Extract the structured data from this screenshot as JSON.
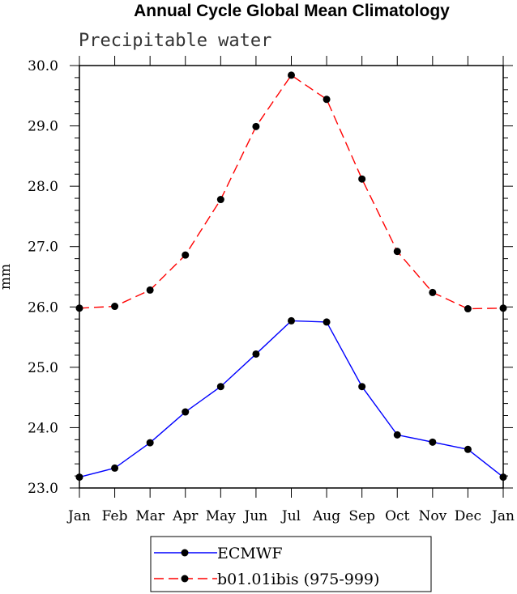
{
  "chart_data": {
    "type": "line",
    "title": "Annual Cycle Global Mean Climatology",
    "subtitle": "Precipitable water",
    "xlabel": "",
    "ylabel": "mm",
    "categories": [
      "Jan",
      "Feb",
      "Mar",
      "Apr",
      "May",
      "Jun",
      "Jul",
      "Aug",
      "Sep",
      "Oct",
      "Nov",
      "Dec",
      "Jan"
    ],
    "ylim": [
      23.0,
      30.0
    ],
    "yticks": [
      "23.0",
      "24.0",
      "25.0",
      "26.0",
      "27.0",
      "28.0",
      "29.0",
      "30.0"
    ],
    "series": [
      {
        "name": "ECMWF",
        "color": "#0000ff",
        "dash": "solid",
        "values": [
          23.18,
          23.33,
          23.75,
          24.26,
          24.68,
          25.22,
          25.77,
          25.75,
          24.68,
          23.88,
          23.76,
          23.64,
          23.18
        ]
      },
      {
        "name": "b01.01ibis (975-999)",
        "color": "#ff0000",
        "dash": "dashed",
        "values": [
          25.98,
          26.01,
          26.28,
          26.86,
          27.78,
          28.99,
          29.84,
          29.44,
          28.12,
          26.92,
          26.24,
          25.97,
          25.98
        ]
      }
    ],
    "legend_position": "bottom-center"
  }
}
